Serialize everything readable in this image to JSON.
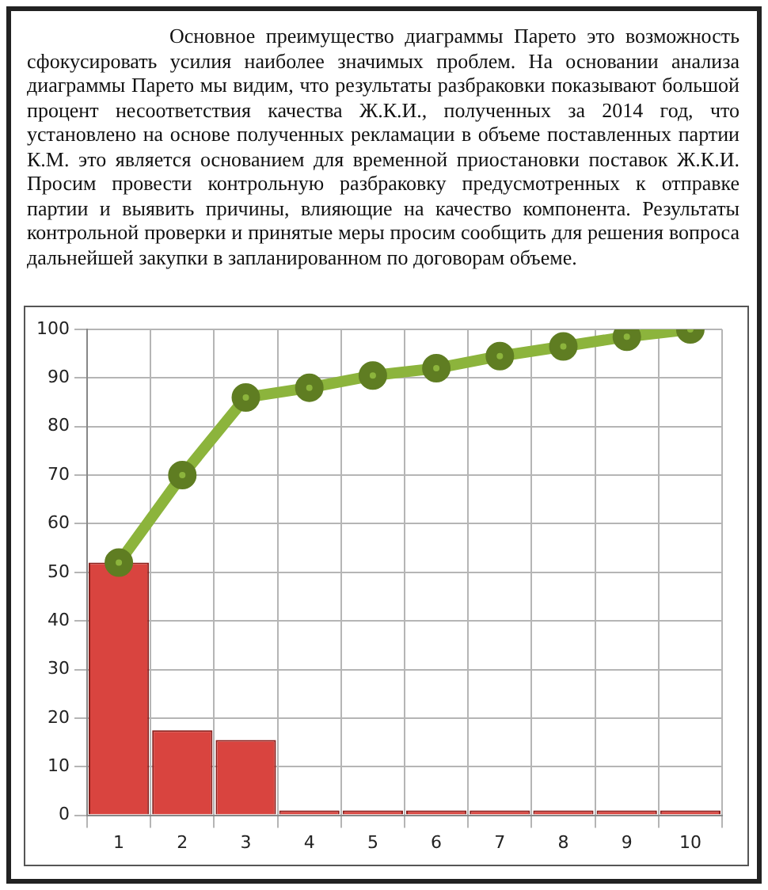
{
  "chart_data": {
    "type": "bar",
    "categories": [
      "1",
      "2",
      "3",
      "4",
      "5",
      "6",
      "7",
      "8",
      "9",
      "10"
    ],
    "series": [
      {
        "color": "#d9443f",
        "values": [
          52,
          17.5,
          15.5,
          1,
          1,
          1,
          1,
          1,
          1,
          1
        ]
      },
      {
        "type": "line",
        "color": "#8cb43c",
        "values": [
          52,
          70,
          86,
          88,
          90.5,
          92,
          94.5,
          96.5,
          98.5,
          100
        ]
      }
    ],
    "ylim": [
      0,
      100
    ],
    "yticks": [
      0,
      10,
      20,
      30,
      40,
      50,
      60,
      70,
      80,
      90,
      100
    ],
    "grid": true,
    "marker": "circle",
    "line_style": "solid",
    "legend": false,
    "annotations": [
      "Основное преимущество диаграммы Парето это возможность сфокусировать усилия наиболее значимых проблем. На основании анализа диаграммы Парето мы видим, что результаты разбраковки показывают большой процент несоответствия качества Ж.К.И., полученных за 2014 год, что установлено на основе полученных рекламации в объеме поставленных партии К.М. это является основанием для временной приостановки поставок Ж.К.И. Просим провести контрольную разбраковку предусмотренных к отправке партии и выявить причины, влияющие на качество компонента. Результаты контрольной проверки и принятые меры просим сообщить для решения вопроса дальнейшей закупки в запланированном по договорам объеме."
    ]
  }
}
